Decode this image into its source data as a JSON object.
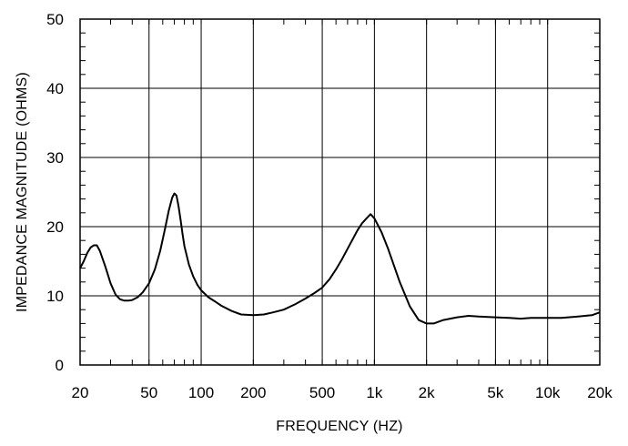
{
  "chart_data": {
    "type": "line",
    "title": "",
    "xlabel": "FREQUENCY  (HZ)",
    "ylabel": "IMPEDANCE MAGNITUDE  (OHMS)",
    "xscale": "log",
    "xlim": [
      20,
      20000
    ],
    "ylim": [
      0,
      50
    ],
    "grid": true,
    "legend": "none",
    "x_ticks": [
      20,
      50,
      100,
      200,
      500,
      1000,
      2000,
      5000,
      10000,
      20000
    ],
    "x_tick_labels": [
      "20",
      "50",
      "100",
      "200",
      "500",
      "1k",
      "2k",
      "5k",
      "10k",
      "20k"
    ],
    "y_ticks": [
      0,
      10,
      20,
      30,
      40,
      50
    ],
    "y_tick_labels": [
      "0",
      "10",
      "20",
      "30",
      "40",
      "50"
    ],
    "series": [
      {
        "color": "#000000",
        "x": [
          20,
          21,
          22,
          23,
          24,
          25,
          26,
          28,
          30,
          32,
          34,
          36,
          38,
          40,
          43,
          46,
          50,
          54,
          58,
          62,
          65,
          68,
          70,
          72,
          74,
          76,
          78,
          80,
          85,
          90,
          95,
          100,
          110,
          120,
          130,
          150,
          170,
          200,
          230,
          260,
          300,
          350,
          400,
          450,
          500,
          550,
          600,
          650,
          700,
          750,
          800,
          850,
          900,
          950,
          1000,
          1100,
          1200,
          1400,
          1600,
          1800,
          2000,
          2200,
          2500,
          3000,
          3500,
          4000,
          5000,
          6000,
          7000,
          8000,
          10000,
          12000,
          15000,
          18000,
          20000
        ],
        "y": [
          14.0,
          15.0,
          16.2,
          17.0,
          17.3,
          17.3,
          16.5,
          14.2,
          11.8,
          10.2,
          9.5,
          9.3,
          9.3,
          9.4,
          9.8,
          10.5,
          11.8,
          13.8,
          16.5,
          19.8,
          22.3,
          24.2,
          24.8,
          24.5,
          23.0,
          21.0,
          19.0,
          17.2,
          14.5,
          12.8,
          11.6,
          10.8,
          9.8,
          9.2,
          8.6,
          7.8,
          7.3,
          7.2,
          7.3,
          7.6,
          8.0,
          8.8,
          9.6,
          10.4,
          11.2,
          12.4,
          13.8,
          15.3,
          16.8,
          18.2,
          19.5,
          20.5,
          21.2,
          21.8,
          21.2,
          19.2,
          16.8,
          12.0,
          8.5,
          6.5,
          6.0,
          6.0,
          6.5,
          6.9,
          7.1,
          7.0,
          6.9,
          6.8,
          6.7,
          6.8,
          6.8,
          6.8,
          7.0,
          7.2,
          7.6
        ]
      }
    ]
  }
}
